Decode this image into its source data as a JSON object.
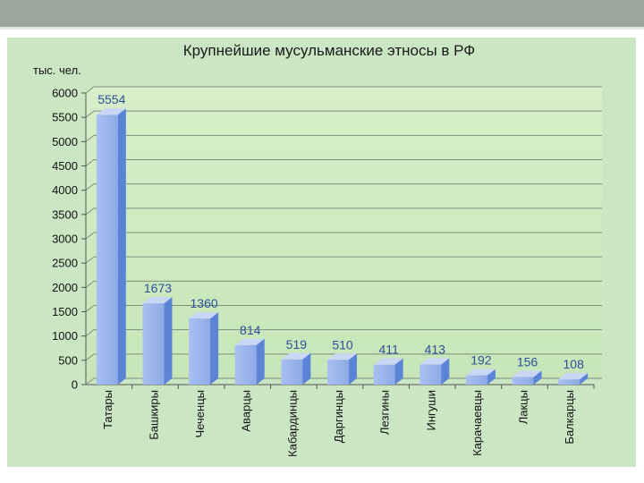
{
  "chart_data": {
    "type": "bar",
    "title": "Крупнейшие мусульманские этносы в РФ",
    "ylabel": "тыс. чел.",
    "xlabel": "",
    "ylim": [
      0,
      6000
    ],
    "yticks": [
      0,
      500,
      1000,
      1500,
      2000,
      2500,
      3000,
      3500,
      4000,
      4500,
      5000,
      5500,
      6000
    ],
    "grid": true,
    "categories": [
      "Татары",
      "Башкиры",
      "Чеченцы",
      "Аварцы",
      "Кабардинцы",
      "Даргинцы",
      "Лезгины",
      "Ингуши",
      "Карачаевцы",
      "Лакцы",
      "Балкарцы"
    ],
    "values": [
      5554,
      1673,
      1360,
      814,
      519,
      510,
      411,
      413,
      192,
      156,
      108
    ],
    "data_labels": [
      "5554",
      "1673",
      "1360",
      "814",
      "519",
      "510",
      "411",
      "413",
      "192",
      "156",
      "108"
    ]
  },
  "colors": {
    "bar_front": "#9db4ea",
    "bar_side": "#5b83d6",
    "bar_top": "#c9d6f4",
    "back_wall": "#d8f0cc",
    "grid": "#7f8f7f",
    "label": "#2f4f99"
  }
}
